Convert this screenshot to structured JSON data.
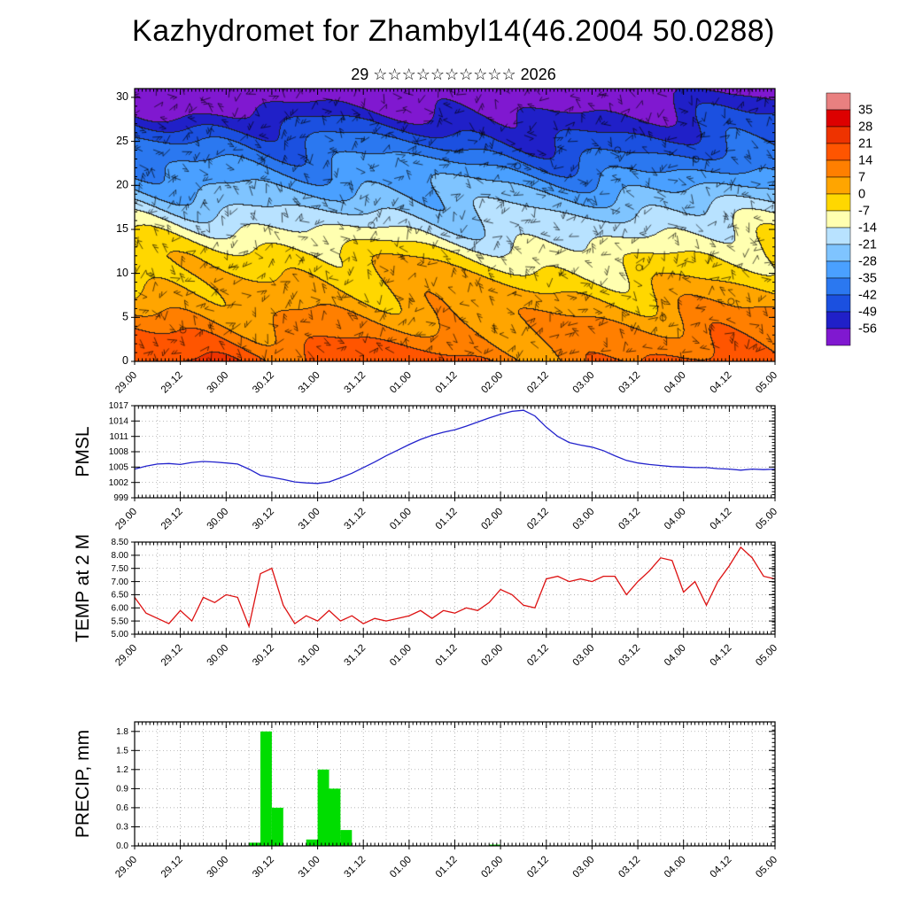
{
  "title": "Kazhydromet for Zhambyl14(46.2004 50.0288)",
  "subtitle": "29 ☆☆☆☆☆☆☆☆☆☆ 2026",
  "time_labels": [
    "29.00",
    "29.12",
    "30.00",
    "30.12",
    "31.00",
    "31.12",
    "01.00",
    "01.12",
    "02.00",
    "02.12",
    "03.00",
    "03.12",
    "04.00",
    "04.12",
    "05.00"
  ],
  "colorbar": {
    "values": [
      35,
      28,
      21,
      14,
      7,
      0,
      -7,
      -14,
      -21,
      -28,
      -35,
      -42,
      -49,
      -56
    ],
    "colors": [
      "#e98080",
      "#dd0000",
      "#ee3300",
      "#ff5500",
      "#ff7f00",
      "#ffa500",
      "#ffd700",
      "#ffffb0",
      "#b8e2ff",
      "#7fc4ff",
      "#4aa0ff",
      "#2b78f0",
      "#1b50e0",
      "#2020c8",
      "#8018d0"
    ]
  },
  "chart_data": [
    {
      "type": "heatmap",
      "name": "cross-section",
      "title": "",
      "ylabel": "",
      "y_ticks": [
        0,
        5,
        10,
        15,
        20,
        25,
        30
      ],
      "y_range": [
        0,
        31
      ],
      "y_minor_step": 1,
      "y_decimals": 0,
      "overlay": "wind-barbs",
      "profile_heights_km": [
        0,
        5,
        10,
        15,
        20,
        25,
        30
      ],
      "profile_temps_c": [
        16,
        7,
        -2,
        -12,
        -31,
        -45,
        -57
      ],
      "colorbar_values": [
        35,
        28,
        21,
        14,
        7,
        0,
        -7,
        -14,
        -21,
        -28,
        -35,
        -42,
        -49,
        -56
      ]
    },
    {
      "type": "line",
      "name": "pmsl",
      "ylabel": "PMSL",
      "color": "#2222cc",
      "y_ticks": [
        999,
        1002,
        1005,
        1008,
        1011,
        1014,
        1017
      ],
      "y_range": [
        999,
        1017
      ],
      "y_decimals": 0,
      "x_step_hours": 3,
      "values": [
        1004.6,
        1005.2,
        1005.6,
        1005.7,
        1005.5,
        1005.9,
        1006.1,
        1006.0,
        1005.8,
        1005.6,
        1004.6,
        1003.4,
        1003.0,
        1002.6,
        1002.1,
        1001.9,
        1001.8,
        1002.1,
        1002.9,
        1003.8,
        1004.9,
        1006.0,
        1007.2,
        1008.3,
        1009.4,
        1010.4,
        1011.2,
        1011.8,
        1012.3,
        1013.0,
        1013.8,
        1014.6,
        1015.3,
        1015.9,
        1016.1,
        1015.0,
        1012.8,
        1011.0,
        1009.8,
        1009.3,
        1008.9,
        1008.2,
        1007.2,
        1006.3,
        1005.8,
        1005.5,
        1005.3,
        1005.1,
        1005.0,
        1004.9,
        1004.9,
        1004.7,
        1004.6,
        1004.4,
        1004.6,
        1004.5,
        1004.6
      ]
    },
    {
      "type": "line",
      "name": "temp2m",
      "ylabel": "TEMP at 2 M",
      "color": "#dd1111",
      "y_ticks": [
        5.0,
        5.5,
        6.0,
        6.5,
        7.0,
        7.5,
        8.0,
        8.5
      ],
      "y_range": [
        5.0,
        8.5
      ],
      "y_decimals": 2,
      "x_step_hours": 3,
      "values": [
        6.4,
        5.8,
        5.6,
        5.4,
        5.9,
        5.5,
        6.4,
        6.2,
        6.5,
        6.4,
        5.3,
        7.3,
        7.5,
        6.1,
        5.4,
        5.7,
        5.5,
        5.9,
        5.5,
        5.7,
        5.4,
        5.6,
        5.5,
        5.6,
        5.7,
        5.9,
        5.6,
        5.9,
        5.8,
        6.0,
        5.9,
        6.2,
        6.7,
        6.5,
        6.1,
        6.0,
        7.1,
        7.2,
        7.0,
        7.1,
        7.0,
        7.2,
        7.2,
        6.5,
        7.0,
        7.4,
        7.9,
        7.8,
        6.6,
        7.0,
        6.1,
        7.0,
        7.6,
        8.3,
        7.9,
        7.2,
        7.1
      ]
    },
    {
      "type": "bar",
      "name": "precip",
      "ylabel": "PRECIP, mm",
      "color": "#00dd00",
      "y_ticks": [
        0.0,
        0.3,
        0.6,
        0.9,
        1.2,
        1.5,
        1.8
      ],
      "y_range": [
        0,
        1.95
      ],
      "y_decimals": 1,
      "bar_width_hours": 3,
      "bars": [
        {
          "t": 30,
          "v": 0.05
        },
        {
          "t": 33,
          "v": 1.8
        },
        {
          "t": 36,
          "v": 0.6
        },
        {
          "t": 45,
          "v": 0.1
        },
        {
          "t": 48,
          "v": 1.2
        },
        {
          "t": 51,
          "v": 0.9
        },
        {
          "t": 54,
          "v": 0.25
        },
        {
          "t": 93,
          "v": 0.02
        }
      ]
    }
  ]
}
